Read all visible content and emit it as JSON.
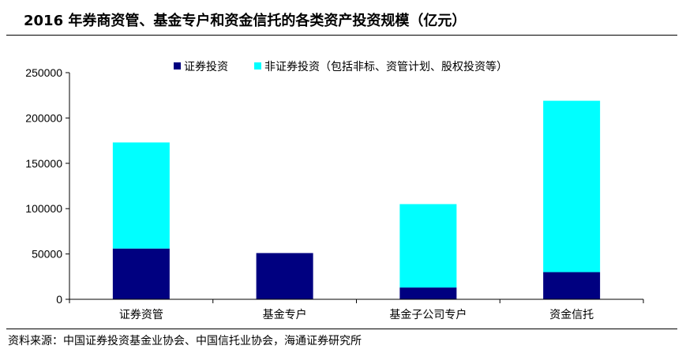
{
  "title": "2016 年券商资管、基金专户和资金信托的各类资产投资规模（亿元）",
  "source": "资料来源：中国证券投资基金业协会、中国信托业协会，海通证券研究所",
  "chart_data": {
    "type": "bar",
    "stacked": true,
    "categories": [
      "证券资管",
      "基金专户",
      "基金子公司专户",
      "资金信托"
    ],
    "series": [
      {
        "name": "证券投资",
        "values": [
          56000,
          51000,
          13000,
          30000
        ],
        "color": "#000080"
      },
      {
        "name": "非证券投资（包括非标、资管计划、股权投资等）",
        "values": [
          117000,
          0,
          92000,
          189000
        ],
        "color": "#00FFFF"
      }
    ],
    "yticks": [
      "0",
      "50000",
      "100000",
      "150000",
      "200000",
      "250000"
    ],
    "ylim": [
      0,
      250000
    ],
    "grid": false,
    "legend": "top"
  }
}
